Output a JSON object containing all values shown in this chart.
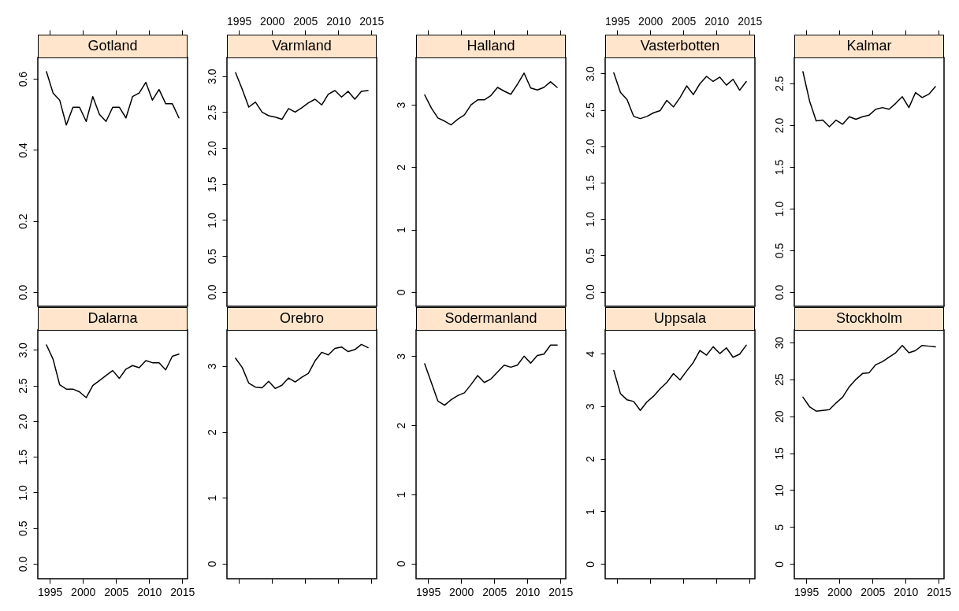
{
  "chart_data": [
    {
      "type": "line",
      "title": "Gotland",
      "color": "#000000",
      "x": [
        1994.5,
        1995.5,
        1996.5,
        1997.5,
        1998.5,
        1999.5,
        2000.5,
        2001.5,
        2002.5,
        2003.5,
        2004.5,
        2005.5,
        2006.5,
        2007.5,
        2008.5,
        2009.5,
        2010.5,
        2011.5,
        2012.5,
        2013.5,
        2014.5
      ],
      "values": [
        0.62,
        0.56,
        0.54,
        0.47,
        0.52,
        0.52,
        0.48,
        0.55,
        0.5,
        0.48,
        0.52,
        0.52,
        0.49,
        0.55,
        0.56,
        0.59,
        0.54,
        0.57,
        0.53,
        0.53,
        0.49
      ],
      "xlim": [
        1993.2,
        2015.8
      ],
      "xticks": [
        1995,
        2000,
        2005,
        2010,
        2015
      ],
      "ylim": [
        -0.04,
        0.66
      ],
      "yticks": [
        {
          "value": 0,
          "label": "0.0"
        },
        0.2,
        0.4,
        0.6
      ],
      "tick_labels": "y"
    },
    {
      "type": "line",
      "title": "Varmland",
      "color": "#000000",
      "x": [
        1994.5,
        1995.5,
        1996.5,
        1997.5,
        1998.5,
        1999.5,
        2000.5,
        2001.5,
        2002.5,
        2003.5,
        2004.5,
        2005.5,
        2006.5,
        2007.5,
        2008.5,
        2009.5,
        2010.5,
        2011.5,
        2012.5,
        2013.5,
        2014.5
      ],
      "values": [
        3.05,
        2.82,
        2.57,
        2.64,
        2.5,
        2.45,
        2.43,
        2.4,
        2.55,
        2.5,
        2.56,
        2.63,
        2.68,
        2.6,
        2.75,
        2.8,
        2.71,
        2.79,
        2.68,
        2.79,
        2.8
      ],
      "xlim": [
        1993.2,
        2015.8
      ],
      "xticks": [
        1995,
        2000,
        2005,
        2010,
        2015
      ],
      "ylim": [
        -0.2,
        3.26
      ],
      "yticks": [
        {
          "value": 0,
          "label": "0.0"
        },
        0.5,
        {
          "value": 1,
          "label": "1.0"
        },
        1.5,
        {
          "value": 2,
          "label": "2.0"
        },
        2.5,
        {
          "value": 3,
          "label": "3.0"
        }
      ]
    },
    {
      "type": "line",
      "title": "Halland",
      "color": "#000000",
      "x": [
        1994.5,
        1995.5,
        1996.5,
        1997.5,
        1998.5,
        1999.5,
        2000.5,
        2001.5,
        2002.5,
        2003.5,
        2004.5,
        2005.5,
        2006.5,
        2007.5,
        2008.5,
        2009.5,
        2010.5,
        2011.5,
        2012.5,
        2013.5,
        2014.5
      ],
      "values": [
        3.16,
        2.95,
        2.79,
        2.74,
        2.68,
        2.77,
        2.84,
        3.0,
        3.08,
        3.08,
        3.15,
        3.28,
        3.22,
        3.17,
        3.33,
        3.51,
        3.27,
        3.24,
        3.28,
        3.37,
        3.28
      ],
      "xlim": [
        1993.2,
        2015.8
      ],
      "xticks": [
        1995,
        2000,
        2005,
        2010,
        2015
      ],
      "ylim": [
        -0.23,
        3.76
      ],
      "yticks": [
        0,
        1,
        2,
        3
      ],
      "tick_labels": "y"
    },
    {
      "type": "line",
      "title": "Vasterbotten",
      "color": "#000000",
      "x": [
        1994.5,
        1995.5,
        1996.5,
        1997.5,
        1998.5,
        1999.5,
        2000.5,
        2001.5,
        2002.5,
        2003.5,
        2004.5,
        2005.5,
        2006.5,
        2007.5,
        2008.5,
        2009.5,
        2010.5,
        2011.5,
        2012.5,
        2013.5,
        2014.5
      ],
      "values": [
        3.01,
        2.74,
        2.64,
        2.41,
        2.38,
        2.41,
        2.46,
        2.49,
        2.63,
        2.54,
        2.67,
        2.83,
        2.71,
        2.86,
        2.96,
        2.89,
        2.95,
        2.84,
        2.92,
        2.77,
        2.89
      ],
      "xlim": [
        1993.2,
        2015.8
      ],
      "xticks": [
        1995,
        2000,
        2005,
        2010,
        2015
      ],
      "ylim": [
        -0.2,
        3.22
      ],
      "yticks": [
        {
          "value": 0,
          "label": "0.0"
        },
        0.5,
        {
          "value": 1,
          "label": "1.0"
        },
        1.5,
        {
          "value": 2,
          "label": "2.0"
        },
        2.5,
        {
          "value": 3,
          "label": "3.0"
        }
      ]
    },
    {
      "type": "line",
      "title": "Kalmar",
      "color": "#000000",
      "x": [
        1994.5,
        1995.5,
        1996.5,
        1997.5,
        1998.5,
        1999.5,
        2000.5,
        2001.5,
        2002.5,
        2003.5,
        2004.5,
        2005.5,
        2006.5,
        2007.5,
        2008.5,
        2009.5,
        2010.5,
        2011.5,
        2012.5,
        2013.5,
        2014.5
      ],
      "values": [
        2.64,
        2.29,
        2.05,
        2.06,
        1.98,
        2.06,
        2.01,
        2.1,
        2.07,
        2.1,
        2.12,
        2.19,
        2.21,
        2.19,
        2.26,
        2.34,
        2.21,
        2.39,
        2.33,
        2.37,
        2.46
      ],
      "xlim": [
        1993.2,
        2015.8
      ],
      "xticks": [
        1995,
        2000,
        2005,
        2010,
        2015
      ],
      "ylim": [
        -0.17,
        2.81
      ],
      "yticks": [
        {
          "value": 0,
          "label": "0.0"
        },
        0.5,
        {
          "value": 1,
          "label": "1.0"
        },
        1.5,
        {
          "value": 2,
          "label": "2.0"
        },
        2.5
      ],
      "tick_labels": "y"
    },
    {
      "type": "line",
      "title": "Dalarna",
      "color": "#000000",
      "x": [
        1994.5,
        1995.5,
        1996.5,
        1997.5,
        1998.5,
        1999.5,
        2000.5,
        2001.5,
        2002.5,
        2003.5,
        2004.5,
        2005.5,
        2006.5,
        2007.5,
        2008.5,
        2009.5,
        2010.5,
        2011.5,
        2012.5,
        2013.5,
        2014.5
      ],
      "values": [
        3.07,
        2.87,
        2.51,
        2.45,
        2.45,
        2.41,
        2.33,
        2.5,
        2.57,
        2.64,
        2.71,
        2.6,
        2.73,
        2.78,
        2.75,
        2.85,
        2.82,
        2.82,
        2.72,
        2.91,
        2.94
      ],
      "xlim": [
        1993.2,
        2015.8
      ],
      "xticks": [
        1995,
        2000,
        2005,
        2010,
        2015
      ],
      "ylim": [
        -0.21,
        3.28
      ],
      "yticks": [
        {
          "value": 0,
          "label": "0.0"
        },
        0.5,
        {
          "value": 1,
          "label": "1.0"
        },
        1.5,
        {
          "value": 2,
          "label": "2.0"
        },
        2.5,
        {
          "value": 3,
          "label": "3.0"
        }
      ]
    },
    {
      "type": "line",
      "title": "Orebro",
      "color": "#000000",
      "x": [
        1994.5,
        1995.5,
        1996.5,
        1997.5,
        1998.5,
        1999.5,
        2000.5,
        2001.5,
        2002.5,
        2003.5,
        2004.5,
        2005.5,
        2006.5,
        2007.5,
        2008.5,
        2009.5,
        2010.5,
        2011.5,
        2012.5,
        2013.5,
        2014.5
      ],
      "values": [
        3.12,
        2.98,
        2.74,
        2.68,
        2.67,
        2.77,
        2.66,
        2.71,
        2.82,
        2.76,
        2.83,
        2.89,
        3.08,
        3.21,
        3.17,
        3.27,
        3.29,
        3.22,
        3.25,
        3.33,
        3.28
      ],
      "xlim": [
        1993.2,
        2015.8
      ],
      "xticks": [
        1995,
        2000,
        2005,
        2010,
        2015
      ],
      "ylim": [
        -0.23,
        3.55
      ],
      "yticks": [
        0,
        1,
        2,
        3
      ],
      "tick_labels": "y"
    },
    {
      "type": "line",
      "title": "Sodermanland",
      "color": "#000000",
      "x": [
        1994.5,
        1995.5,
        1996.5,
        1997.5,
        1998.5,
        1999.5,
        2000.5,
        2001.5,
        2002.5,
        2003.5,
        2004.5,
        2005.5,
        2006.5,
        2007.5,
        2008.5,
        2009.5,
        2010.5,
        2011.5,
        2012.5,
        2013.5,
        2014.5
      ],
      "values": [
        2.89,
        2.62,
        2.35,
        2.29,
        2.37,
        2.43,
        2.47,
        2.59,
        2.72,
        2.62,
        2.67,
        2.77,
        2.87,
        2.84,
        2.87,
        3.0,
        2.9,
        3.01,
        3.03,
        3.16,
        3.16
      ],
      "xlim": [
        1993.2,
        2015.8
      ],
      "xticks": [
        1995,
        2000,
        2005,
        2010,
        2015
      ],
      "ylim": [
        -0.22,
        3.38
      ],
      "yticks": [
        0,
        1,
        2,
        3
      ]
    },
    {
      "type": "line",
      "title": "Uppsala",
      "color": "#000000",
      "x": [
        1994.5,
        1995.5,
        1996.5,
        1997.5,
        1998.5,
        1999.5,
        2000.5,
        2001.5,
        2002.5,
        2003.5,
        2004.5,
        2005.5,
        2006.5,
        2007.5,
        2008.5,
        2009.5,
        2010.5,
        2011.5,
        2012.5,
        2013.5,
        2014.5
      ],
      "values": [
        3.68,
        3.24,
        3.12,
        3.09,
        2.92,
        3.08,
        3.19,
        3.33,
        3.45,
        3.62,
        3.5,
        3.67,
        3.83,
        4.06,
        3.97,
        4.13,
        4.0,
        4.11,
        3.93,
        3.99,
        4.16
      ],
      "xlim": [
        1993.2,
        2015.8
      ],
      "xticks": [
        1995,
        2000,
        2005,
        2010,
        2015
      ],
      "ylim": [
        -0.28,
        4.45
      ],
      "yticks": [
        0,
        1,
        2,
        3,
        4
      ],
      "tick_labels": "y"
    },
    {
      "type": "line",
      "title": "Stockholm",
      "color": "#000000",
      "x": [
        1994.5,
        1995.5,
        1996.5,
        1997.5,
        1998.5,
        1999.5,
        2000.5,
        2001.5,
        2002.5,
        2003.5,
        2004.5,
        2005.5,
        2006.5,
        2007.5,
        2008.5,
        2009.5,
        2010.5,
        2011.5,
        2012.5,
        2013.5,
        2014.5
      ],
      "values": [
        22.6,
        21.3,
        20.7,
        20.8,
        20.9,
        21.8,
        22.6,
        24.0,
        25.0,
        25.8,
        25.9,
        27.0,
        27.4,
        28.0,
        28.6,
        29.6,
        28.6,
        28.9,
        29.6,
        29.5,
        29.4
      ],
      "xlim": [
        1993.2,
        2015.8
      ],
      "xticks": [
        1995,
        2000,
        2005,
        2010,
        2015
      ],
      "ylim": [
        -2.0,
        31.7
      ],
      "yticks": [
        0,
        5,
        10,
        15,
        20,
        25,
        30
      ]
    }
  ]
}
